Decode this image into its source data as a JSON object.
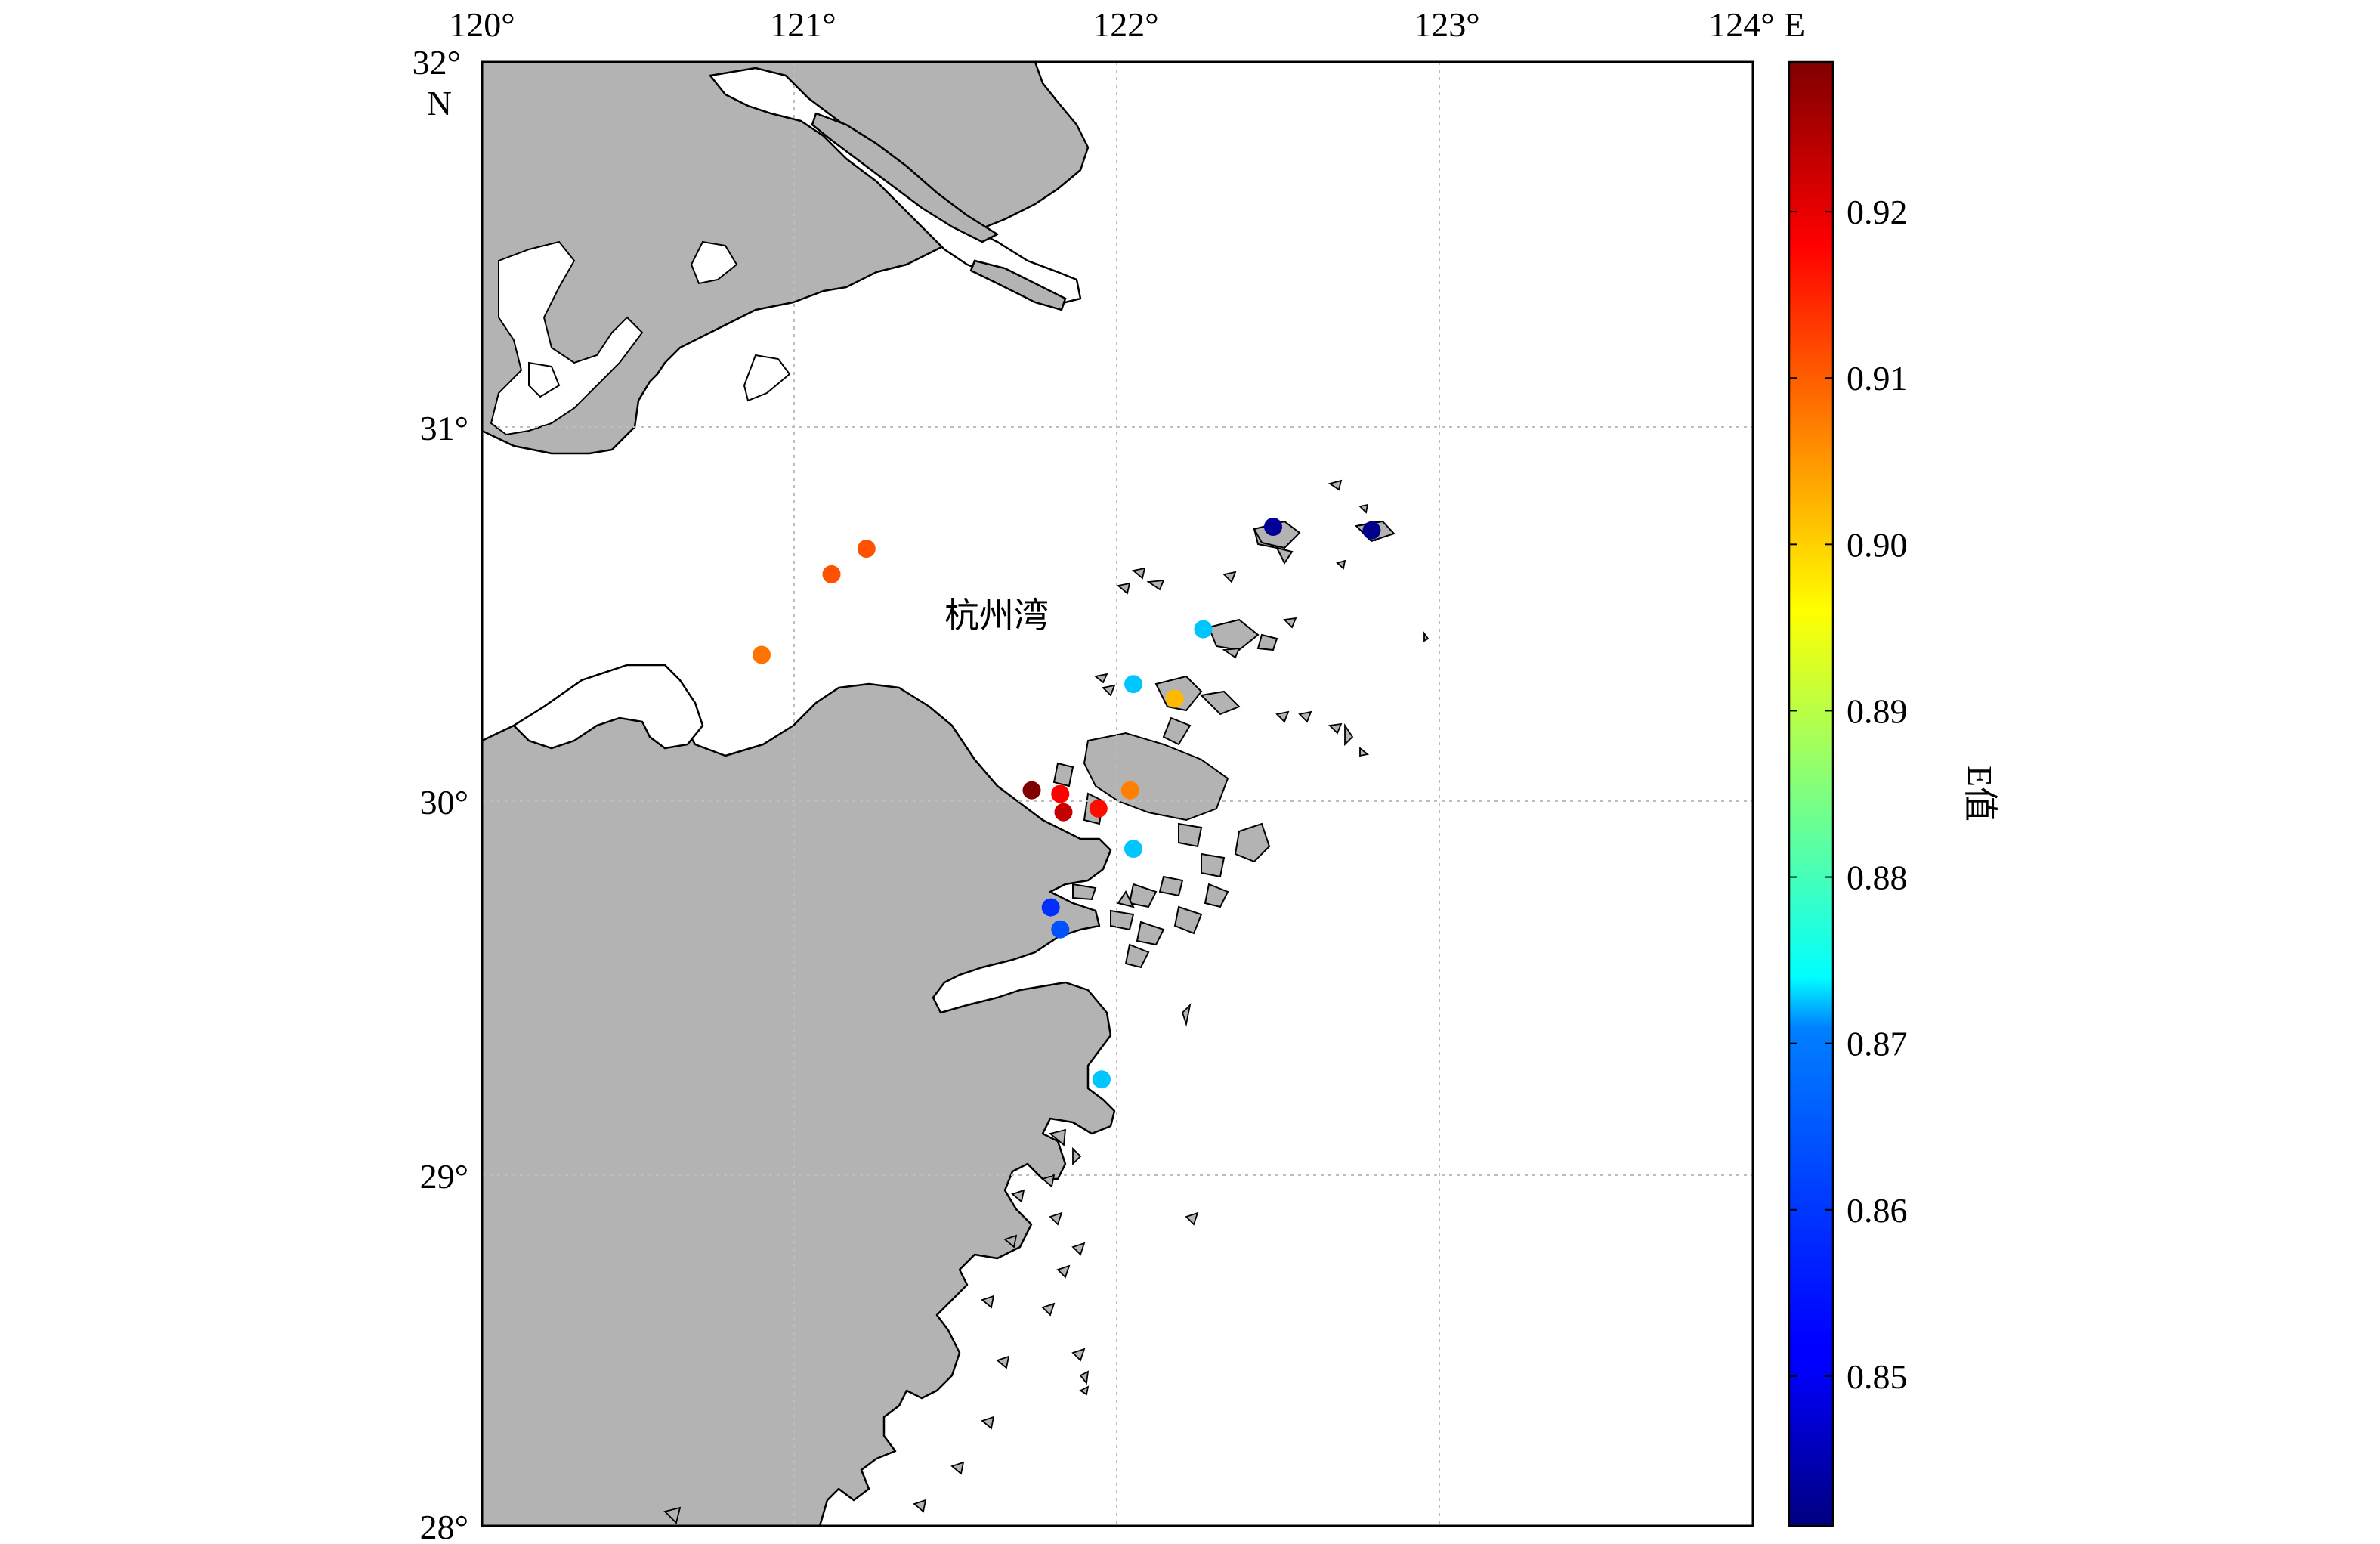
{
  "map": {
    "lon_ticks": [
      "120°",
      "121°",
      "122°",
      "123°",
      "124°"
    ],
    "lat_ticks": [
      "32°",
      "31°",
      "30°",
      "29°",
      "28°"
    ],
    "lon_unit": "E",
    "lat_unit": "N",
    "bay_label": "杭州湾",
    "lon_range": [
      120,
      124
    ],
    "lat_range": [
      28,
      32
    ],
    "grid": "dotted",
    "land_color": "#b3b3b3",
    "sea_color": "#ffffff"
  },
  "colorbar": {
    "label": "E值",
    "ticks": [
      "0.92",
      "0.91",
      "0.90",
      "0.89",
      "0.88",
      "0.87",
      "0.86",
      "0.85"
    ],
    "tick_values": [
      0.92,
      0.91,
      0.9,
      0.89,
      0.88,
      0.87,
      0.86,
      0.85
    ],
    "range": [
      0.841,
      0.929
    ],
    "colormap": "jet"
  },
  "chart_data": {
    "type": "scatter",
    "x_label": "",
    "y_label": "",
    "points": [
      {
        "lon": 120.88,
        "lat": 30.38,
        "e": 0.908
      },
      {
        "lon": 121.1,
        "lat": 30.6,
        "e": 0.911
      },
      {
        "lon": 121.21,
        "lat": 30.67,
        "e": 0.911
      },
      {
        "lon": 122.49,
        "lat": 30.73,
        "e": 0.843
      },
      {
        "lon": 122.8,
        "lat": 30.72,
        "e": 0.842
      },
      {
        "lon": 122.27,
        "lat": 30.45,
        "e": 0.869
      },
      {
        "lon": 122.05,
        "lat": 30.3,
        "e": 0.869
      },
      {
        "lon": 122.18,
        "lat": 30.26,
        "e": 0.902
      },
      {
        "lon": 121.73,
        "lat": 30.01,
        "e": 0.929
      },
      {
        "lon": 121.82,
        "lat": 30.0,
        "e": 0.918
      },
      {
        "lon": 122.04,
        "lat": 30.01,
        "e": 0.907
      },
      {
        "lon": 121.83,
        "lat": 29.95,
        "e": 0.923
      },
      {
        "lon": 121.94,
        "lat": 29.96,
        "e": 0.917
      },
      {
        "lon": 122.05,
        "lat": 29.85,
        "e": 0.869
      },
      {
        "lon": 121.79,
        "lat": 29.69,
        "e": 0.856
      },
      {
        "lon": 121.82,
        "lat": 29.63,
        "e": 0.859
      },
      {
        "lon": 121.95,
        "lat": 29.22,
        "e": 0.869
      }
    ]
  }
}
